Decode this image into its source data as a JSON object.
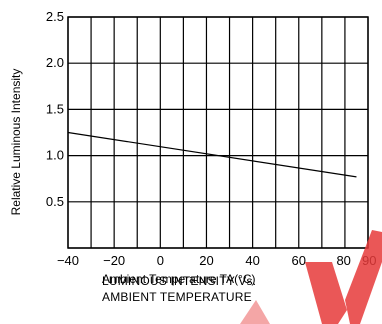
{
  "chart_data": {
    "type": "line",
    "xlabel": "Ambient Temperature TA(°C)",
    "ylabel": "Relative Luminous Intensity",
    "xlim": [
      -40,
      90
    ],
    "ylim": [
      0,
      2.5
    ],
    "x_ticks": [
      -40,
      -20,
      0,
      20,
      40,
      60,
      80,
      90
    ],
    "x_tick_labels": [
      "−40",
      "−20",
      "0",
      "20",
      "40",
      "60",
      "80",
      "90"
    ],
    "y_ticks": [
      0.5,
      1.0,
      1.5,
      2.0,
      2.5
    ],
    "y_tick_labels": [
      "0.5",
      "1.0",
      "1.5",
      "2.0",
      "2.5"
    ],
    "x_gridlines": [
      -40,
      -30,
      -20,
      -10,
      0,
      10,
      20,
      30,
      40,
      50,
      60,
      70,
      80,
      90
    ],
    "y_gridlines": [
      0,
      0.5,
      1.0,
      1.5,
      2.0,
      2.5
    ],
    "grid": true,
    "series": [
      {
        "x": [
          -40,
          85
        ],
        "y": [
          1.25,
          0.77
        ],
        "color": "#000000"
      }
    ],
    "caption": [
      "LUMINOUS INTENSITY Vs.",
      "AMBIENT TEMPERATURE"
    ]
  },
  "watermark_color": "#e63a3a"
}
